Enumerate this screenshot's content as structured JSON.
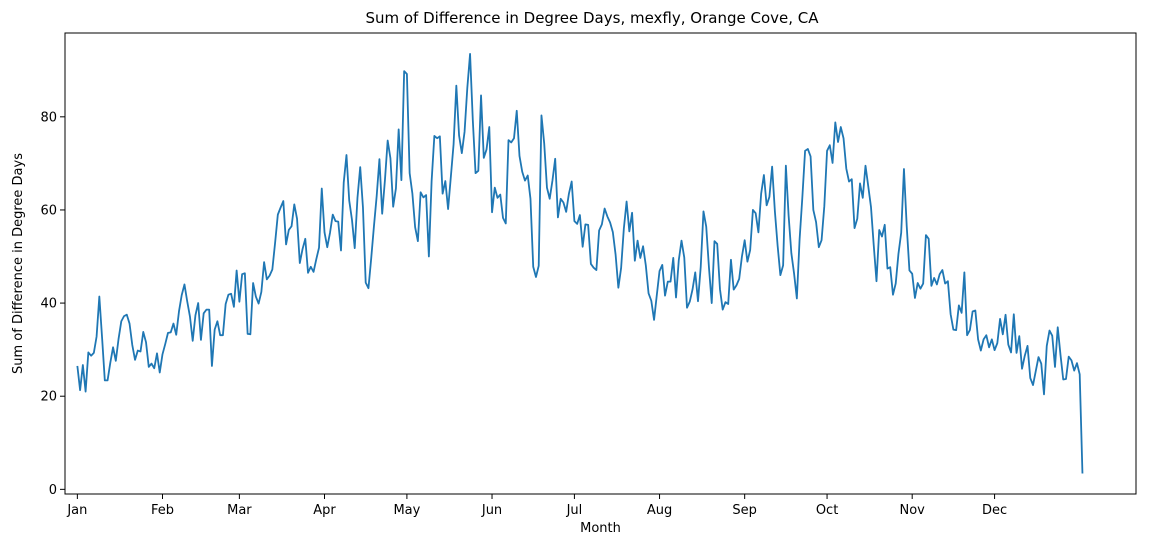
{
  "chart_data": {
    "type": "line",
    "title": "Sum of Difference in Degree Days, mexfly, Orange Cove, CA",
    "xlabel": "Month",
    "ylabel": "Sum of Difference in Degree Days",
    "x_ticks": [
      "Jan",
      "Feb",
      "Mar",
      "Apr",
      "May",
      "Jun",
      "Jul",
      "Aug",
      "Sep",
      "Oct",
      "Nov",
      "Dec"
    ],
    "xlim": [
      -4.5,
      385.5
    ],
    "ylim": [
      -1,
      98
    ],
    "y_ticks": [
      0,
      20,
      40,
      60,
      80
    ],
    "grid": false,
    "series": [
      {
        "color": "#1f77b4",
        "values": [
          26.5,
          21.3,
          26.7,
          21.0,
          29.4,
          28.7,
          29.3,
          32.8,
          41.4,
          32.6,
          23.4,
          23.4,
          27.2,
          30.5,
          27.6,
          32.3,
          36.1,
          37.2,
          37.5,
          35.6,
          31.0,
          27.8,
          29.8,
          29.6,
          33.8,
          31.6,
          26.3,
          27.0,
          26.0,
          29.2,
          25.1,
          29.0,
          31.2,
          33.6,
          33.7,
          35.6,
          33.2,
          38.2,
          41.7,
          44.0,
          40.4,
          37.1,
          31.9,
          37.4,
          40.0,
          32.1,
          37.8,
          38.6,
          38.6,
          26.5,
          34.3,
          36.1,
          33.1,
          33.1,
          39.8,
          41.8,
          42.0,
          39.2,
          47.0,
          40.3,
          46.2,
          46.4,
          33.4,
          33.3,
          44.3,
          41.4,
          39.9,
          42.4,
          48.8,
          45.1,
          45.9,
          47.2,
          52.9,
          59.0,
          60.5,
          61.9,
          52.6,
          55.7,
          56.5,
          61.2,
          58.1,
          48.6,
          51.6,
          53.8,
          46.5,
          47.8,
          46.7,
          49.4,
          51.9,
          64.6,
          55.2,
          52.0,
          55.1,
          59.0,
          57.6,
          57.5,
          51.3,
          65.9,
          71.8,
          62.0,
          57.9,
          51.8,
          62.6,
          69.2,
          60.5,
          44.4,
          43.2,
          49.6,
          56.5,
          63.0,
          70.9,
          59.2,
          66.4,
          74.9,
          71.1,
          60.7,
          64.6,
          77.3,
          66.4,
          89.8,
          89.2,
          67.9,
          63.5,
          56.3,
          53.3,
          63.8,
          62.7,
          63.2,
          50.0,
          66.2,
          75.9,
          75.4,
          75.8,
          63.5,
          66.2,
          60.2,
          67.1,
          74.1,
          86.7,
          76.0,
          72.2,
          76.8,
          86.2,
          93.5,
          79.3,
          67.9,
          68.4,
          84.6,
          71.2,
          73.0,
          77.8,
          59.5,
          64.8,
          62.6,
          63.3,
          58.3,
          57.1,
          75.0,
          74.5,
          75.4,
          81.3,
          71.6,
          68.2,
          66.3,
          67.4,
          62.4,
          47.8,
          45.6,
          48.0,
          80.3,
          74.3,
          64.8,
          62.4,
          66.3,
          71.0,
          58.4,
          62.4,
          61.6,
          59.6,
          63.5,
          66.1,
          57.6,
          57.0,
          58.9,
          52.1,
          56.9,
          56.8,
          48.4,
          47.6,
          47.1,
          55.6,
          56.9,
          60.3,
          58.6,
          57.3,
          55.2,
          50.4,
          43.3,
          47.5,
          56.0,
          61.8,
          55.4,
          59.4,
          49.1,
          53.4,
          49.7,
          52.2,
          48.1,
          42.1,
          40.5,
          36.4,
          41.7,
          46.9,
          48.2,
          41.6,
          44.6,
          44.6,
          49.7,
          41.2,
          49.2,
          53.4,
          49.8,
          39.0,
          40.3,
          42.9,
          46.6,
          40.4,
          47.8,
          59.7,
          56.4,
          47.6,
          40.0,
          53.3,
          52.7,
          43.0,
          38.6,
          40.2,
          39.8,
          49.3,
          42.9,
          43.8,
          45.2,
          50.0,
          53.5,
          48.9,
          51.4,
          60.0,
          59.3,
          55.2,
          63.5,
          67.5,
          61.0,
          62.8,
          69.3,
          59.7,
          52.3,
          46.0,
          48.1,
          69.5,
          58.8,
          50.7,
          46.3,
          41.0,
          53.7,
          62.7,
          72.7,
          73.1,
          71.5,
          60.0,
          57.4,
          52.0,
          53.5,
          60.8,
          72.7,
          73.9,
          70.1,
          78.8,
          74.6,
          77.8,
          75.4,
          68.9,
          66.1,
          66.6,
          56.1,
          58.1,
          65.7,
          62.6,
          69.5,
          65.1,
          60.6,
          52.4,
          44.7,
          55.7,
          54.3,
          56.8,
          47.4,
          47.7,
          41.8,
          44.2,
          50.6,
          55.1,
          68.8,
          56.6,
          47.0,
          46.3,
          41.1,
          44.3,
          43.1,
          44.2,
          54.6,
          53.8,
          43.7,
          45.4,
          44.0,
          46.2,
          47.1,
          44.2,
          44.7,
          37.6,
          34.3,
          34.2,
          39.5,
          37.9,
          46.6,
          33.1,
          34.2,
          38.2,
          38.4,
          32.2,
          29.8,
          32.2,
          33.1,
          30.5,
          32.2,
          29.9,
          31.4,
          36.6,
          33.3,
          37.5,
          31.1,
          29.4,
          37.6,
          29.3,
          32.9,
          25.9,
          28.7,
          30.8,
          23.9,
          22.4,
          25.4,
          28.4,
          27.0,
          20.4,
          30.8,
          34.1,
          33.0,
          26.3,
          34.8,
          28.9,
          23.6,
          23.7,
          28.5,
          27.7,
          25.5,
          27.1,
          24.7,
          3.4
        ],
        "x_start": 0
      }
    ]
  }
}
